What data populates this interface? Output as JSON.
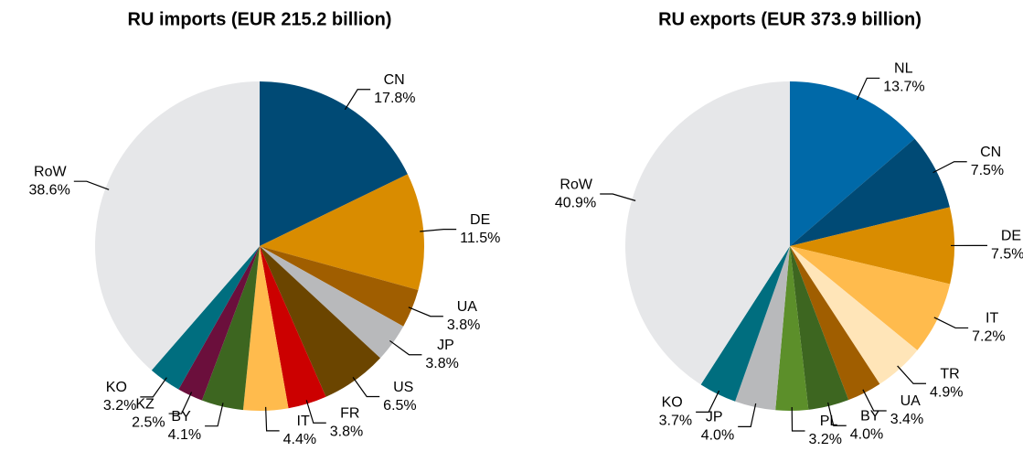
{
  "chart_data": [
    {
      "type": "pie",
      "title": "RU imports (EUR 215.2 billion)",
      "categories": [
        "CN",
        "DE",
        "UA",
        "JP",
        "US",
        "FR",
        "IT",
        "BY",
        "KZ",
        "KO",
        "RoW"
      ],
      "values": [
        17.8,
        11.5,
        3.8,
        3.8,
        6.5,
        3.8,
        4.4,
        4.1,
        2.5,
        3.2,
        38.6
      ],
      "value_labels": [
        "17.8%",
        "11.5%",
        "3.8%",
        "3.8%",
        "6.5%",
        "3.8%",
        "4.4%",
        "4.1%",
        "2.5%",
        "3.2%",
        "38.6%"
      ],
      "colors": [
        "#004a75",
        "#d98c00",
        "#a05e00",
        "#b8b9bb",
        "#6b4500",
        "#cc0000",
        "#ffbb4d",
        "#3d6620",
        "#6b0f3c",
        "#006e7f",
        "#e6e7e9"
      ]
    },
    {
      "type": "pie",
      "title": "RU exports (EUR 373.9 billion)",
      "categories": [
        "NL",
        "CN",
        "DE",
        "IT",
        "TR",
        "UA",
        "BY",
        "PL",
        "JP",
        "KO",
        "RoW"
      ],
      "values": [
        13.7,
        7.5,
        7.5,
        7.2,
        4.9,
        3.4,
        4.0,
        3.2,
        4.0,
        3.7,
        40.9
      ],
      "value_labels": [
        "13.7%",
        "7.5%",
        "7.5%",
        "7.2%",
        "4.9%",
        "3.4%",
        "4.0%",
        "3.2%",
        "4.0%",
        "3.7%",
        "40.9%"
      ],
      "colors": [
        "#0069a8",
        "#004a75",
        "#d98c00",
        "#ffbb4d",
        "#ffe5b8",
        "#a05e00",
        "#3d6620",
        "#5c8f2a",
        "#b8b9bb",
        "#006e7f",
        "#e6e7e9"
      ]
    }
  ]
}
